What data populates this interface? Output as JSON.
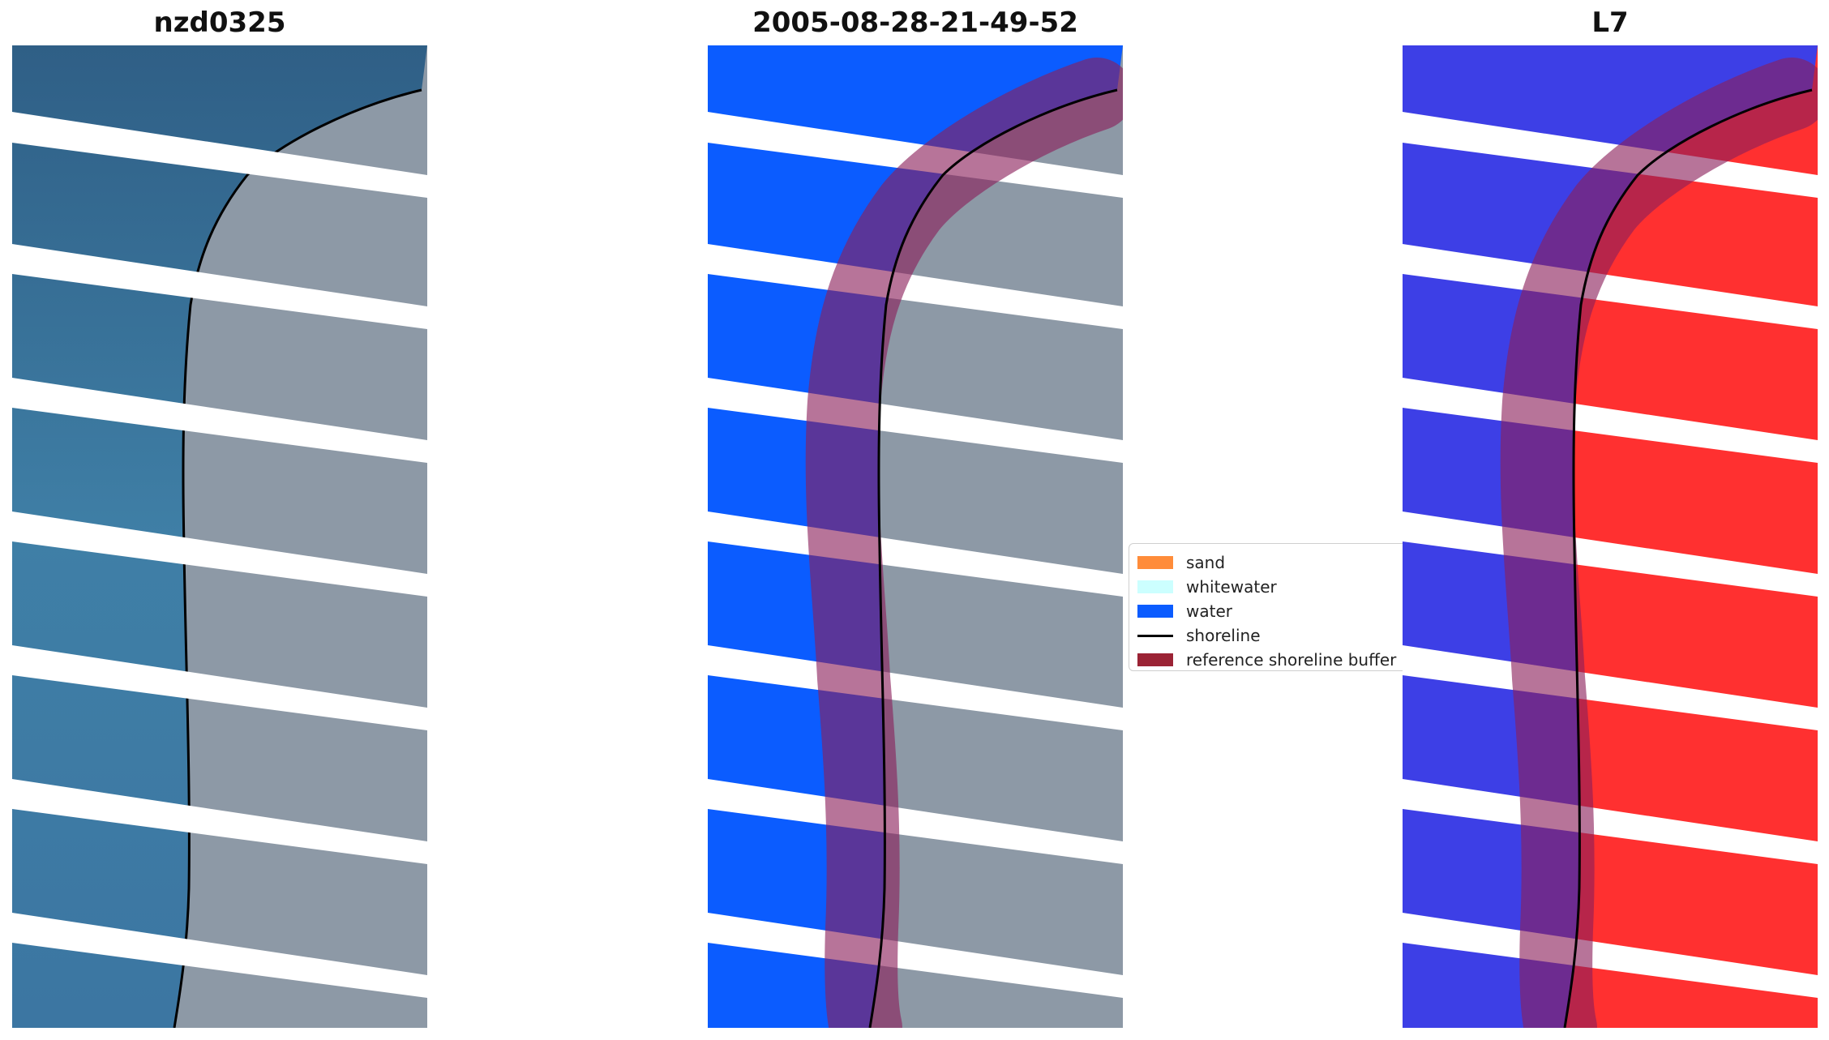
{
  "panels": [
    {
      "title": "nzd0325"
    },
    {
      "title": "2005-08-28-21-49-52"
    },
    {
      "title": "L7"
    }
  ],
  "legend": [
    {
      "label": "sand",
      "color": "#ff8c3a",
      "kind": "patch"
    },
    {
      "label": "whitewater",
      "color": "#ccffff",
      "kind": "patch"
    },
    {
      "label": "water",
      "color": "#0b5cff",
      "kind": "patch"
    },
    {
      "label": "shoreline",
      "color": "#000000",
      "kind": "line"
    },
    {
      "label": "reference shoreline buffer",
      "color": "#9b2335",
      "kind": "patch"
    }
  ],
  "colors": {
    "sea": "#3a6f98",
    "land": "#8a97a4",
    "water_class": "#0b5cff",
    "ndwi_water": "#3d3fe6",
    "ndwi_land": "#ff3030",
    "buffer": "#8a1f5a"
  }
}
